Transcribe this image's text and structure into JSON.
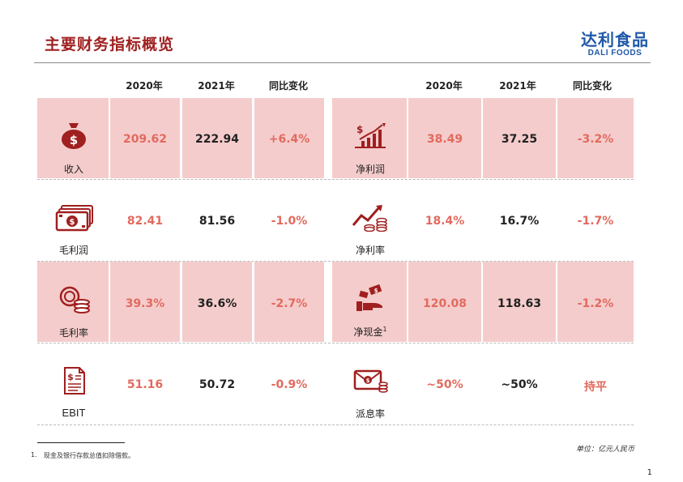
{
  "page": {
    "title": "主要财务指标概览",
    "logo_cn": "达利食品",
    "logo_en": "DALI FOODS",
    "unit_note": "单位：亿元人民币",
    "footnote_num": "1.",
    "footnote_text": "现金及银行存款总值扣除借款。",
    "page_number": "1"
  },
  "headers": {
    "left": [
      "2020年",
      "2021年",
      "同比变化"
    ],
    "right": [
      "2020年",
      "2021年",
      "同比变化"
    ]
  },
  "left_rows": [
    {
      "label": "收入",
      "icon": "money-bag-icon",
      "y2020": "209.62",
      "y2021": "222.94",
      "change": "+6.4%"
    },
    {
      "label": "毛利润",
      "icon": "cash-stack-icon",
      "y2020": "82.41",
      "y2021": "81.56",
      "change": "-1.0%"
    },
    {
      "label": "毛利率",
      "icon": "coin-stack-icon",
      "y2020": "39.3%",
      "y2021": "36.6%",
      "change": "-2.7%"
    },
    {
      "label": "EBIT",
      "icon": "invoice-icon",
      "y2020": "51.16",
      "y2021": "50.72",
      "change": "-0.9%"
    }
  ],
  "right_rows": [
    {
      "label": "净利润",
      "icon": "growth-bar-chart-icon",
      "y2020": "38.49",
      "y2021": "37.25",
      "change": "-3.2%"
    },
    {
      "label": "净利率",
      "icon": "trend-coins-icon",
      "y2020": "18.4%",
      "y2021": "16.7%",
      "change": "-1.7%"
    },
    {
      "label": "净现金",
      "label_sup": "1",
      "icon": "hand-money-icon",
      "y2020": "120.08",
      "y2021": "118.63",
      "change": "-1.2%"
    },
    {
      "label": "派息率",
      "icon": "envelope-coins-icon",
      "y2020": "~50%",
      "y2021": "~50%",
      "change": "持平"
    }
  ],
  "colors": {
    "title": "#a02121",
    "logo": "#1f58a8",
    "pink_fill": "#f5cccc",
    "red_value": "#e26a5e",
    "icon_red": "#a01f1f"
  }
}
